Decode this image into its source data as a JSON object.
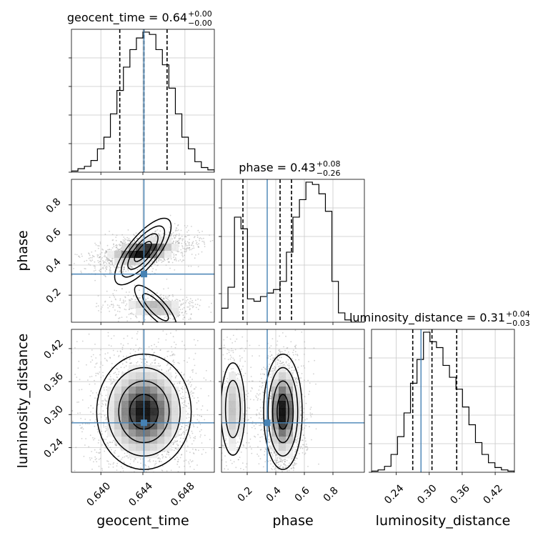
{
  "chart_data": {
    "type": "corner",
    "parameters": [
      "geocent_time",
      "phase",
      "luminosity_distance"
    ],
    "injection": {
      "geocent_time": 0.6441,
      "phase": 0.34,
      "luminosity_distance": 0.285
    },
    "accent_color": "#4682b4",
    "titles": [
      {
        "param": "geocent_time",
        "text": "geocent_time = 0.64",
        "sup": "+0.00",
        "sub": "−0.00"
      },
      {
        "param": "phase",
        "text": "phase = 0.43",
        "sup": "+0.08",
        "sub": "−0.26"
      },
      {
        "param": "luminosity_distance",
        "text": "luminosity_distance = 0.31",
        "sup": "+0.04",
        "sub": "−0.03"
      }
    ],
    "axes": {
      "geocent_time": {
        "label": "geocent_time",
        "range": [
          0.6372,
          0.6508
        ],
        "ticks": [
          0.64,
          0.644,
          0.648
        ],
        "tick_labels": [
          "0.640",
          "0.644",
          "0.648"
        ]
      },
      "phase": {
        "label": "phase",
        "range": [
          0.02,
          1.02
        ],
        "ticks": [
          0.2,
          0.4,
          0.6,
          0.8
        ],
        "tick_labels": [
          "0.2",
          "0.4",
          "0.6",
          "0.8"
        ],
        "y_range": [
          0.02,
          0.97
        ],
        "y_ticks": [
          0.2,
          0.4,
          0.6,
          0.8
        ],
        "y_tick_labels": [
          "0.2",
          "0.4",
          "0.6",
          "0.8"
        ]
      },
      "luminosity_distance": {
        "label": "luminosity_distance",
        "range": [
          0.195,
          0.455
        ],
        "ticks": [
          0.24,
          0.3,
          0.36,
          0.42
        ],
        "tick_labels": [
          "0.24",
          "0.30",
          "0.36",
          "0.42"
        ]
      }
    },
    "quantiles": {
      "geocent_time": [
        0.6418,
        0.6441,
        0.6463
      ],
      "phase": [
        0.17,
        0.43,
        0.51
      ],
      "luminosity_distance": [
        0.27,
        0.305,
        0.35
      ]
    },
    "hist1d": {
      "geocent_time": {
        "edges": [
          0.6372,
          0.6508
        ],
        "counts": [
          1,
          3,
          5,
          10,
          20,
          30,
          50,
          70,
          90,
          105,
          115,
          120,
          118,
          105,
          92,
          72,
          50,
          30,
          20,
          9,
          4,
          2
        ]
      },
      "phase": {
        "edges": [
          0.02,
          1.02
        ],
        "counts": [
          12,
          30,
          90,
          80,
          20,
          18,
          22,
          25,
          28,
          35,
          60,
          90,
          105,
          120,
          118,
          110,
          95,
          35,
          8,
          2,
          0,
          0
        ]
      },
      "luminosity_distance": {
        "edges": [
          0.195,
          0.455
        ],
        "counts": [
          1,
          2,
          5,
          15,
          30,
          50,
          75,
          95,
          118,
          110,
          105,
          90,
          80,
          70,
          55,
          40,
          25,
          15,
          8,
          4,
          2,
          1
        ]
      }
    },
    "hist2d": {
      "phase_vs_geocent_time": {
        "x": "geocent_time",
        "y": "phase",
        "modes": [
          {
            "x": 0.644,
            "y": 0.49,
            "sx": 0.0013,
            "sy": 0.035,
            "rho": 0.45,
            "w": 0.8
          },
          {
            "x": 0.6452,
            "y": 0.12,
            "sx": 0.0013,
            "sy": 0.03,
            "rho": -0.2,
            "w": 0.2
          }
        ]
      },
      "luminosity_distance_vs_geocent_time": {
        "x": "geocent_time",
        "y": "luminosity_distance",
        "modes": [
          {
            "x": 0.6441,
            "y": 0.305,
            "sx": 0.0015,
            "sy": 0.035,
            "rho": 0.0,
            "w": 1.0
          }
        ]
      },
      "luminosity_distance_vs_phase": {
        "x": "phase",
        "y": "luminosity_distance",
        "modes": [
          {
            "x": 0.45,
            "y": 0.305,
            "sx": 0.045,
            "sy": 0.035,
            "rho": 0.0,
            "w": 0.8
          },
          {
            "x": 0.1,
            "y": 0.31,
            "sx": 0.04,
            "sy": 0.04,
            "rho": 0.0,
            "w": 0.2
          }
        ]
      }
    },
    "grid": true
  }
}
